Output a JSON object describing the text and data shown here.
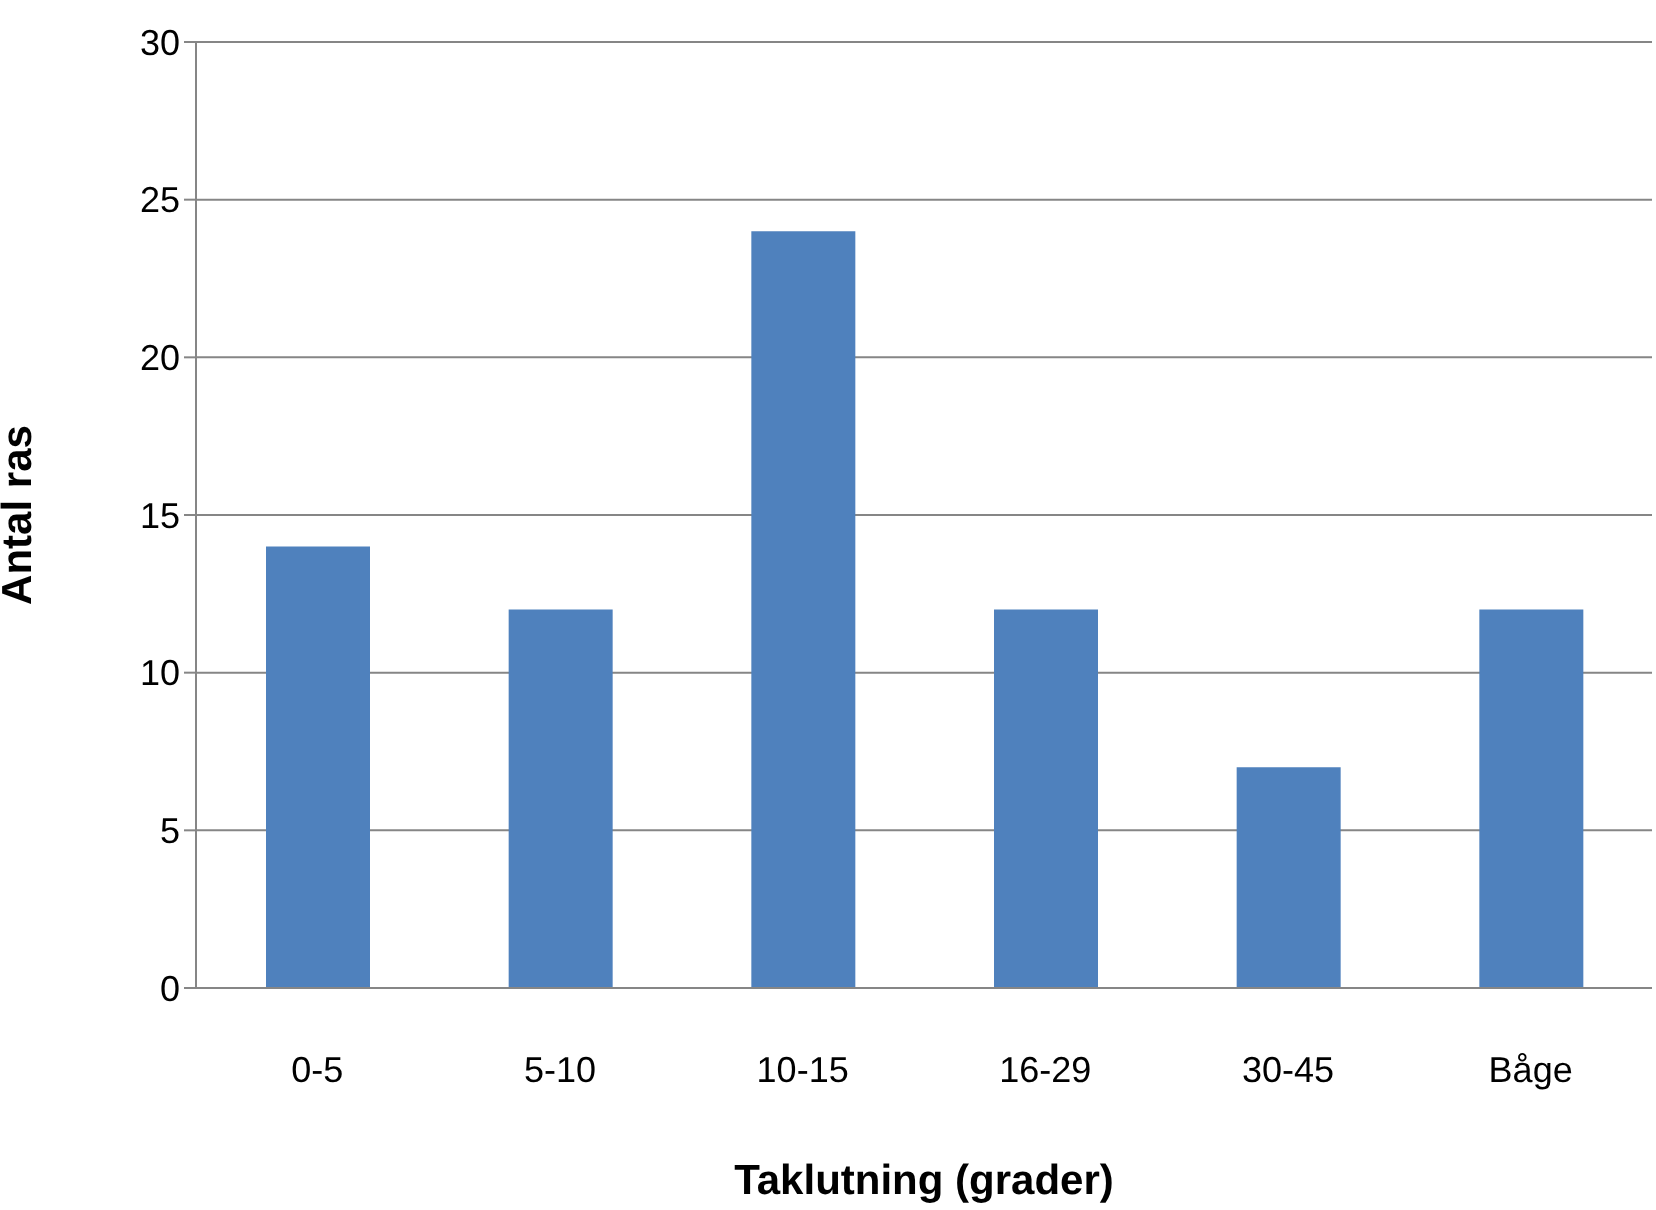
{
  "chart_data": {
    "type": "bar",
    "xlabel": "Taklutning (grader)",
    "ylabel": "Antal ras",
    "categories": [
      "0-5",
      "5-10",
      "10-15",
      "16-29",
      "30-45",
      "Båge"
    ],
    "values": [
      14,
      12,
      24,
      12,
      7,
      12
    ],
    "color": "#4f81bd",
    "ylim": [
      0,
      30
    ],
    "yticks": [
      0,
      5,
      10,
      15,
      20,
      25,
      30
    ],
    "grid": "y"
  }
}
